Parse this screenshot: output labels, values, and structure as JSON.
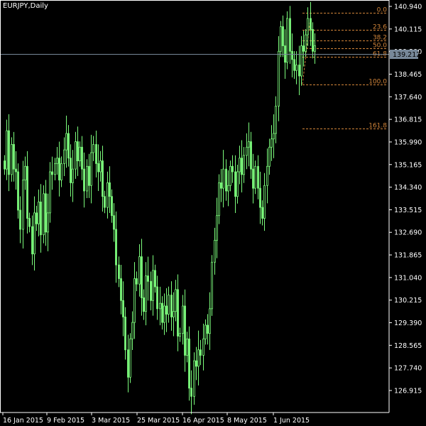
{
  "window": {
    "title": "EURJPY,Daily"
  },
  "colors": {
    "background": "#000000",
    "candle": "#7CFC7C",
    "axis": "#FFFFFF",
    "fib": "#D2853A",
    "price_line": "#778899",
    "price_label_bg": "#778899"
  },
  "axes": {
    "y_ticks": [
      "140.940",
      "140.115",
      "139.290",
      "138.465",
      "137.640",
      "136.815",
      "135.990",
      "135.165",
      "134.340",
      "133.515",
      "132.690",
      "131.865",
      "131.040",
      "130.215",
      "129.390",
      "128.565",
      "127.740",
      "126.915"
    ],
    "x_ticks": [
      "16 Jan 2015",
      "9 Feb 2015",
      "3 Mar 2015",
      "25 Mar 2015",
      "16 Apr 2015",
      "8 May 2015",
      "1 Jun 2015"
    ]
  },
  "current_price": "139.212",
  "fibonacci": {
    "high": 140.7,
    "low": 138.1,
    "levels": [
      {
        "label": "0.0",
        "ratio": 0
      },
      {
        "label": "23.6",
        "ratio": 0.236
      },
      {
        "label": "38.2",
        "ratio": 0.382
      },
      {
        "label": "50.0",
        "ratio": 0.5
      },
      {
        "label": "61.8",
        "ratio": 0.618
      },
      {
        "label": "100.0",
        "ratio": 1.0
      },
      {
        "label": "161.8",
        "ratio": 1.618
      }
    ]
  },
  "chart_data": {
    "type": "candlestick",
    "title": "EURJPY,Daily",
    "ylim": [
      126.17,
      141.01
    ],
    "x_categories": [
      "16 Jan 2015",
      "9 Feb 2015",
      "3 Mar 2015",
      "25 Mar 2015",
      "16 Apr 2015",
      "8 May 2015",
      "1 Jun 2015"
    ],
    "closes": [
      135.0,
      136.4,
      134.8,
      135.9,
      135.0,
      134.9,
      133.5,
      132.8,
      134.6,
      135.1,
      133.2,
      132.9,
      131.9,
      133.4,
      133.0,
      133.8,
      132.6,
      134.1,
      132.7,
      133.4,
      134.9,
      134.8,
      135.2,
      135.4,
      134.6,
      135.2,
      135.7,
      136.3,
      135.4,
      134.5,
      135.0,
      136.0,
      135.3,
      135.8,
      135.0,
      134.2,
      135.1,
      134.4,
      135.6,
      135.9,
      135.2,
      134.9,
      135.3,
      134.0,
      133.6,
      134.5,
      134.0,
      133.3,
      132.8,
      131.5,
      131.0,
      130.2,
      129.6,
      128.4,
      127.4,
      128.8,
      129.4,
      131.0,
      130.8,
      131.8,
      130.3,
      129.8,
      131.1,
      130.9,
      130.2,
      131.3,
      130.7,
      129.9,
      130.1,
      129.4,
      130.0,
      129.7,
      130.4,
      129.6,
      129.8,
      130.6,
      128.9,
      129.0,
      130.0,
      128.2,
      128.8,
      127.0,
      126.7,
      128.0,
      127.8,
      128.4,
      128.2,
      128.8,
      129.3,
      129.0,
      129.9,
      131.6,
      132.4,
      133.3,
      134.5,
      134.3,
      135.0,
      134.2,
      134.4,
      135.1,
      134.9,
      134.0,
      134.9,
      135.4,
      134.8,
      135.5,
      135.8,
      136.0,
      135.0,
      134.3,
      135.1,
      134.3,
      133.6,
      133.2,
      134.4,
      135.1,
      135.8,
      136.1,
      136.3,
      137.3,
      139.3,
      140.2,
      139.5,
      138.9,
      140.5,
      139.3,
      139.0,
      138.6,
      138.8,
      138.4,
      139.5,
      139.3,
      139.9,
      140.5,
      140.1,
      139.3,
      139.5
    ]
  }
}
